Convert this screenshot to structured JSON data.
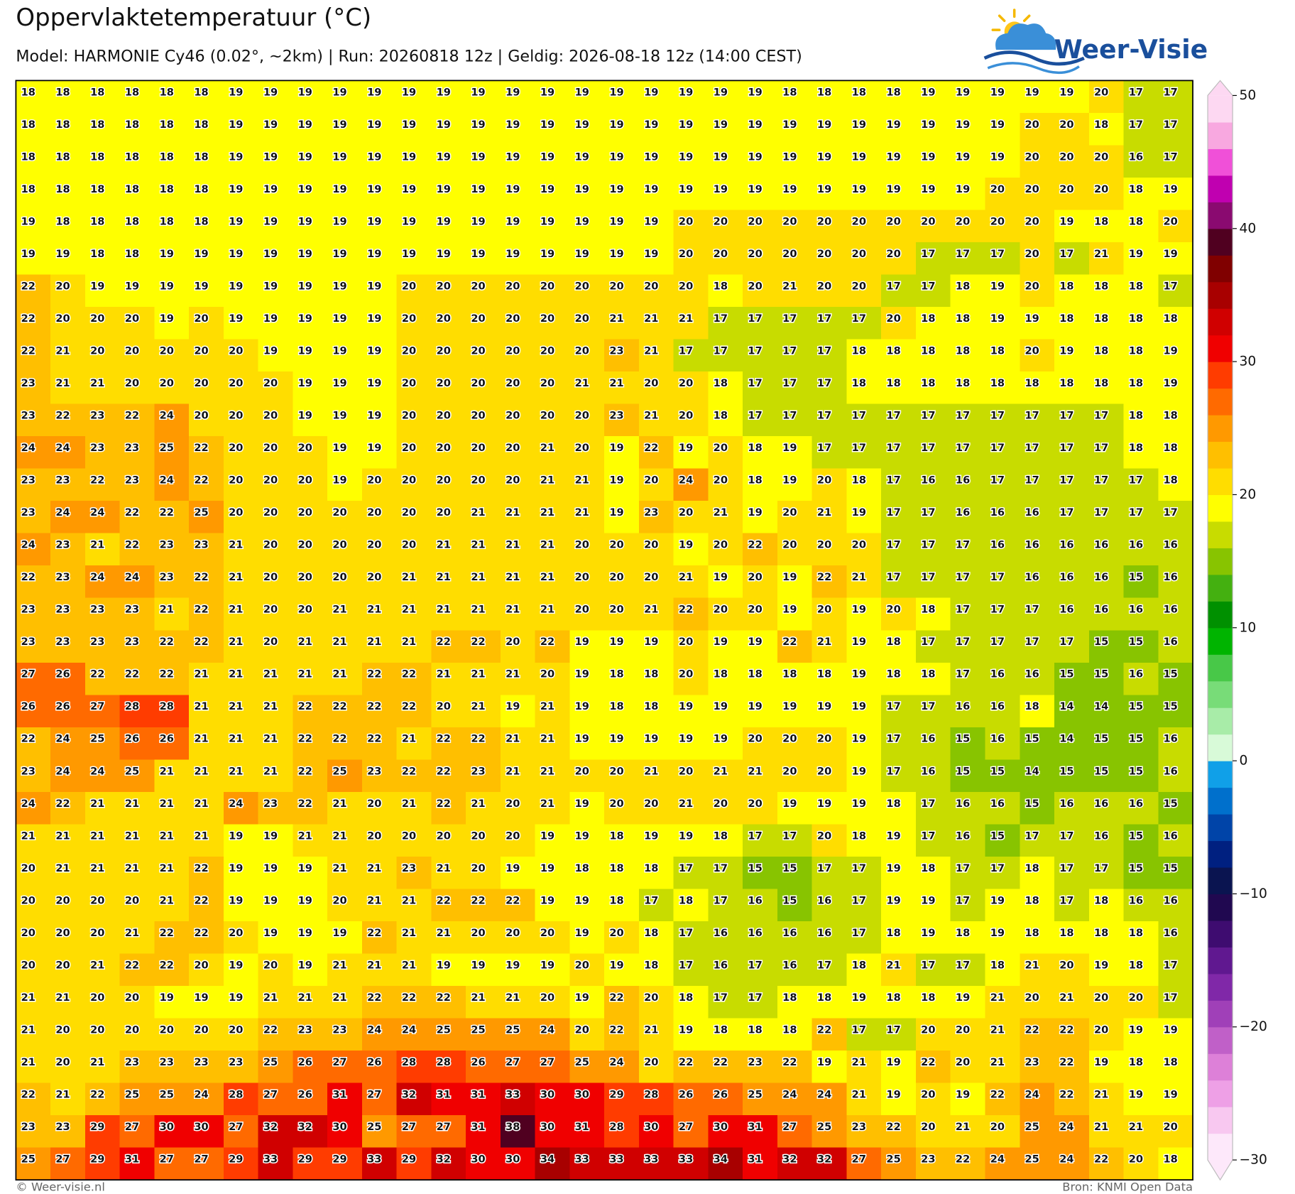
{
  "header": {
    "title": "Oppervlaktetemperatuur (°C)",
    "subtitle": "Model: HARMONIE Cy46 (0.02°, ~2km)  |  Run: 20260818 12z  |  Geldig: 2026-08-18 12z (14:00 CEST)"
  },
  "logo": "Weer-Visie",
  "grid": {
    "values": [
      [
        18,
        18,
        18,
        18,
        18,
        18,
        19,
        19,
        19,
        19,
        19,
        19,
        19,
        19,
        19,
        19,
        19,
        19,
        19,
        19,
        19,
        19,
        18,
        18,
        18,
        18,
        19,
        19,
        19,
        19,
        19,
        20,
        17,
        17
      ],
      [
        18,
        18,
        18,
        18,
        18,
        18,
        19,
        19,
        19,
        19,
        19,
        19,
        19,
        19,
        19,
        19,
        19,
        19,
        19,
        19,
        19,
        19,
        19,
        19,
        19,
        19,
        19,
        19,
        19,
        20,
        20,
        18,
        17,
        17
      ],
      [
        18,
        18,
        18,
        18,
        18,
        18,
        19,
        19,
        19,
        19,
        19,
        19,
        19,
        19,
        19,
        19,
        19,
        19,
        19,
        19,
        19,
        19,
        19,
        19,
        19,
        19,
        19,
        19,
        19,
        20,
        20,
        20,
        16,
        17
      ],
      [
        18,
        18,
        18,
        18,
        18,
        18,
        19,
        19,
        19,
        19,
        19,
        19,
        19,
        19,
        19,
        19,
        19,
        19,
        19,
        19,
        19,
        19,
        19,
        19,
        19,
        19,
        19,
        19,
        20,
        20,
        20,
        20,
        18,
        19
      ],
      [
        19,
        18,
        18,
        18,
        18,
        18,
        19,
        19,
        19,
        19,
        19,
        19,
        19,
        19,
        19,
        19,
        19,
        19,
        19,
        20,
        20,
        20,
        20,
        20,
        20,
        20,
        20,
        20,
        20,
        20,
        19,
        18,
        18,
        20
      ],
      [
        19,
        19,
        18,
        18,
        19,
        19,
        19,
        19,
        19,
        19,
        19,
        19,
        19,
        19,
        19,
        19,
        19,
        19,
        19,
        20,
        20,
        20,
        20,
        20,
        20,
        20,
        17,
        17,
        17,
        20,
        17,
        21,
        19,
        19
      ],
      [
        22,
        20,
        19,
        19,
        19,
        19,
        19,
        19,
        19,
        19,
        19,
        20,
        20,
        20,
        20,
        20,
        20,
        20,
        20,
        20,
        18,
        20,
        21,
        20,
        20,
        17,
        17,
        18,
        19,
        20,
        18,
        18,
        18,
        17
      ],
      [
        22,
        20,
        20,
        20,
        19,
        20,
        19,
        19,
        19,
        19,
        19,
        20,
        20,
        20,
        20,
        20,
        20,
        21,
        21,
        21,
        17,
        17,
        17,
        17,
        17,
        20,
        18,
        18,
        19,
        19,
        18,
        18,
        18,
        18
      ],
      [
        22,
        21,
        20,
        20,
        20,
        20,
        20,
        19,
        19,
        19,
        19,
        20,
        20,
        20,
        20,
        20,
        20,
        23,
        21,
        17,
        17,
        17,
        17,
        17,
        18,
        18,
        18,
        18,
        18,
        20,
        19,
        18,
        18,
        19
      ],
      [
        23,
        21,
        21,
        20,
        20,
        20,
        20,
        20,
        19,
        19,
        19,
        20,
        20,
        20,
        20,
        20,
        21,
        21,
        20,
        20,
        18,
        17,
        17,
        17,
        18,
        18,
        18,
        18,
        18,
        18,
        18,
        18,
        18,
        19
      ],
      [
        23,
        22,
        23,
        22,
        24,
        20,
        20,
        20,
        19,
        19,
        19,
        20,
        20,
        20,
        20,
        20,
        20,
        23,
        21,
        20,
        18,
        17,
        17,
        17,
        17,
        17,
        17,
        17,
        17,
        17,
        17,
        17,
        18,
        18
      ],
      [
        24,
        24,
        23,
        23,
        25,
        22,
        20,
        20,
        20,
        19,
        19,
        20,
        20,
        20,
        20,
        21,
        20,
        19,
        22,
        19,
        20,
        18,
        19,
        17,
        17,
        17,
        17,
        17,
        17,
        17,
        17,
        17,
        18,
        18
      ],
      [
        23,
        23,
        22,
        23,
        24,
        22,
        20,
        20,
        20,
        19,
        20,
        20,
        20,
        20,
        20,
        21,
        21,
        19,
        20,
        24,
        20,
        18,
        19,
        20,
        18,
        17,
        16,
        16,
        17,
        17,
        17,
        17,
        17,
        18
      ],
      [
        23,
        24,
        24,
        22,
        22,
        25,
        20,
        20,
        20,
        20,
        20,
        20,
        20,
        21,
        21,
        21,
        21,
        19,
        23,
        20,
        21,
        19,
        20,
        21,
        19,
        17,
        17,
        16,
        16,
        16,
        17,
        17,
        17,
        17
      ],
      [
        24,
        23,
        21,
        22,
        23,
        23,
        21,
        20,
        20,
        20,
        20,
        20,
        21,
        21,
        21,
        21,
        20,
        20,
        20,
        19,
        20,
        22,
        20,
        20,
        20,
        17,
        17,
        17,
        16,
        16,
        16,
        16,
        16,
        16
      ],
      [
        22,
        23,
        24,
        24,
        23,
        22,
        21,
        20,
        20,
        20,
        20,
        21,
        21,
        21,
        21,
        21,
        20,
        20,
        20,
        21,
        19,
        20,
        19,
        22,
        21,
        17,
        17,
        17,
        17,
        16,
        16,
        16,
        15,
        16
      ],
      [
        23,
        23,
        23,
        23,
        21,
        22,
        21,
        20,
        20,
        21,
        21,
        21,
        21,
        21,
        21,
        21,
        20,
        20,
        21,
        22,
        20,
        20,
        19,
        20,
        19,
        20,
        18,
        17,
        17,
        17,
        16,
        16,
        16,
        16
      ],
      [
        23,
        23,
        23,
        23,
        22,
        22,
        21,
        20,
        21,
        21,
        21,
        21,
        22,
        22,
        20,
        22,
        19,
        19,
        19,
        20,
        19,
        19,
        22,
        21,
        19,
        18,
        17,
        17,
        17,
        17,
        17,
        15,
        15,
        16
      ],
      [
        27,
        26,
        22,
        22,
        22,
        21,
        21,
        21,
        21,
        21,
        22,
        22,
        21,
        21,
        21,
        20,
        19,
        18,
        18,
        20,
        18,
        18,
        18,
        18,
        19,
        18,
        18,
        17,
        16,
        16,
        15,
        15,
        16,
        15
      ],
      [
        26,
        26,
        27,
        28,
        28,
        21,
        21,
        21,
        22,
        22,
        22,
        22,
        20,
        21,
        19,
        21,
        19,
        18,
        18,
        19,
        19,
        19,
        19,
        19,
        19,
        17,
        17,
        16,
        16,
        18,
        14,
        14,
        15,
        15
      ],
      [
        22,
        24,
        25,
        26,
        26,
        21,
        21,
        21,
        22,
        22,
        22,
        21,
        22,
        22,
        21,
        21,
        19,
        19,
        19,
        19,
        19,
        20,
        20,
        20,
        19,
        17,
        16,
        15,
        16,
        15,
        14,
        15,
        15,
        16
      ],
      [
        23,
        24,
        24,
        25,
        21,
        21,
        21,
        21,
        22,
        25,
        23,
        22,
        22,
        23,
        21,
        21,
        20,
        20,
        21,
        20,
        21,
        21,
        20,
        20,
        19,
        17,
        16,
        15,
        15,
        14,
        15,
        15,
        15,
        16
      ],
      [
        24,
        22,
        21,
        21,
        21,
        21,
        24,
        23,
        22,
        21,
        20,
        21,
        22,
        21,
        20,
        21,
        19,
        20,
        20,
        21,
        20,
        20,
        19,
        19,
        19,
        18,
        17,
        16,
        16,
        15,
        16,
        16,
        16,
        15
      ],
      [
        21,
        21,
        21,
        21,
        21,
        21,
        19,
        19,
        21,
        21,
        20,
        20,
        20,
        20,
        20,
        19,
        19,
        18,
        19,
        19,
        18,
        17,
        17,
        20,
        18,
        19,
        17,
        16,
        15,
        17,
        17,
        16,
        15,
        16
      ],
      [
        20,
        21,
        21,
        21,
        21,
        22,
        19,
        19,
        19,
        21,
        21,
        23,
        21,
        20,
        19,
        19,
        18,
        18,
        18,
        17,
        17,
        15,
        15,
        17,
        17,
        19,
        18,
        17,
        17,
        18,
        17,
        17,
        15,
        15
      ],
      [
        20,
        20,
        20,
        20,
        21,
        22,
        19,
        19,
        19,
        20,
        21,
        21,
        22,
        22,
        22,
        19,
        19,
        18,
        17,
        18,
        17,
        16,
        15,
        16,
        17,
        19,
        19,
        17,
        19,
        18,
        17,
        18,
        16,
        16
      ],
      [
        20,
        20,
        20,
        21,
        22,
        22,
        20,
        19,
        19,
        19,
        22,
        21,
        21,
        20,
        20,
        20,
        19,
        20,
        18,
        17,
        16,
        16,
        16,
        16,
        17,
        18,
        19,
        18,
        19,
        18,
        18,
        18,
        18,
        16
      ],
      [
        20,
        20,
        21,
        22,
        22,
        20,
        19,
        20,
        19,
        21,
        21,
        21,
        19,
        19,
        19,
        19,
        20,
        19,
        18,
        17,
        16,
        17,
        16,
        17,
        18,
        21,
        17,
        17,
        18,
        21,
        20,
        19,
        18,
        17
      ],
      [
        21,
        21,
        20,
        20,
        19,
        19,
        19,
        21,
        21,
        21,
        22,
        22,
        22,
        21,
        21,
        20,
        19,
        22,
        20,
        18,
        17,
        17,
        18,
        18,
        19,
        18,
        18,
        19,
        21,
        20,
        21,
        20,
        20,
        17
      ],
      [
        21,
        20,
        20,
        20,
        20,
        20,
        20,
        22,
        23,
        23,
        24,
        24,
        25,
        25,
        25,
        24,
        20,
        22,
        21,
        19,
        18,
        18,
        18,
        22,
        17,
        17,
        20,
        20,
        21,
        22,
        22,
        20,
        19,
        19
      ],
      [
        21,
        20,
        21,
        23,
        23,
        23,
        23,
        25,
        26,
        27,
        26,
        28,
        28,
        26,
        27,
        27,
        25,
        24,
        20,
        22,
        22,
        23,
        22,
        19,
        21,
        19,
        22,
        20,
        21,
        23,
        22,
        19,
        18,
        18
      ],
      [
        22,
        21,
        22,
        25,
        25,
        24,
        28,
        27,
        26,
        31,
        27,
        32,
        31,
        31,
        33,
        30,
        30,
        29,
        28,
        26,
        26,
        25,
        24,
        24,
        21,
        19,
        20,
        19,
        22,
        24,
        22,
        21,
        19,
        19
      ],
      [
        23,
        23,
        29,
        27,
        30,
        30,
        27,
        32,
        32,
        30,
        25,
        27,
        27,
        31,
        38,
        30,
        31,
        28,
        30,
        27,
        30,
        31,
        27,
        25,
        23,
        22,
        20,
        21,
        20,
        25,
        24,
        21,
        21,
        20
      ],
      [
        25,
        27,
        29,
        31,
        27,
        27,
        29,
        33,
        29,
        29,
        33,
        29,
        32,
        30,
        30,
        34,
        33,
        33,
        33,
        33,
        34,
        31,
        32,
        32,
        27,
        25,
        23,
        22,
        24,
        25,
        24,
        22,
        20,
        18
      ]
    ]
  },
  "colorbar": {
    "range": [
      -30,
      50
    ],
    "ticks": [
      {
        "value": -30,
        "label": "−30"
      },
      {
        "value": -20,
        "label": "−20"
      },
      {
        "value": -10,
        "label": "−10"
      },
      0,
      10,
      20,
      30,
      40,
      50
    ],
    "colors": [
      "#fde8fa",
      "#f8c8f0",
      "#eea0e6",
      "#dd80d8",
      "#c060c8",
      "#a040b8",
      "#8028a8",
      "#601890",
      "#3e0c70",
      "#200850",
      "#0a1450",
      "#002080",
      "#0044a8",
      "#0070cc",
      "#10a0e8",
      "#d8fad8",
      "#a8eca8",
      "#78dc78",
      "#48c848",
      "#00b400",
      "#009000",
      "#44b010",
      "#88c400",
      "#c8dc00",
      "#ffff00",
      "#ffdd00",
      "#ffbf00",
      "#ff9900",
      "#ff6a00",
      "#ff3c00",
      "#f00000",
      "#d00000",
      "#a80000",
      "#800000",
      "#500020",
      "#8a0a70",
      "#c000b0",
      "#f050d8",
      "#f8a8e0",
      "#fdd8f2"
    ]
  },
  "footer": {
    "left": "© Weer-visie.nl",
    "right": "Bron: KNMI Open Data"
  }
}
